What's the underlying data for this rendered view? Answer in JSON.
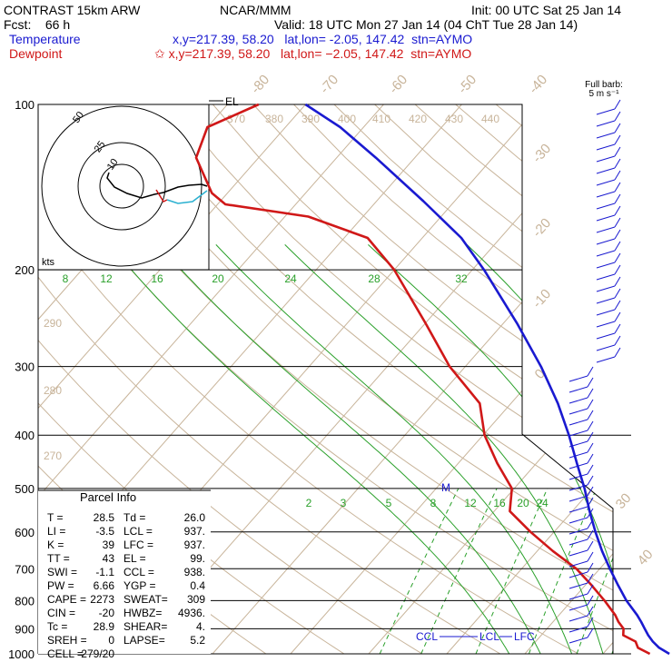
{
  "header": {
    "model": "CONTRAST 15km ARW",
    "center": "NCAR/MMM",
    "init": "Init: 00 UTC Sat 25 Jan 14",
    "fcst": "Fcst:    66 h",
    "valid": "Valid: 18 UTC Mon 27 Jan 14 (04 ChT Tue 28 Jan 14)",
    "temperature_label": "Temperature",
    "temperature_info": "x,y=217.39, 58.20   lat,lon= -2.05, 147.42  stn=AYMO",
    "dewpoint_label": "Dewpoint",
    "dewpoint_info": "✩ x,y=217.39, 58.20   lat,lon= −2.05, 147.42  stn=AYMO"
  },
  "barb_label": {
    "line1": "Full barb:",
    "line2": "5 m s⁻¹"
  },
  "hodo_label": "kts",
  "hodo_rings": [
    "10",
    "25",
    "50"
  ],
  "parcel": {
    "title": "Parcel Info",
    "rows": [
      [
        "T  =",
        "28.5",
        "Td =",
        "26.0"
      ],
      [
        "LI =",
        "-3.5",
        "LCL =",
        "937."
      ],
      [
        "K  =",
        "39",
        "LFC =",
        "937."
      ],
      [
        "TT =",
        "43",
        "EL =",
        "99."
      ],
      [
        "SWI =",
        "-1.1",
        "CCL =",
        "938."
      ],
      [
        "PW =",
        "6.66",
        "YGP =",
        "0.4"
      ],
      [
        "CAPE =",
        "2273",
        "SWEAT=",
        "309"
      ],
      [
        "CIN =",
        "-20",
        "HWBZ=",
        "4936."
      ],
      [
        "Tc =",
        "28.9",
        "SHEAR=",
        "4."
      ],
      [
        "SREH =",
        "0",
        "LAPSE=",
        "5.2"
      ],
      [
        "CELL =",
        "279/20",
        "",
        ""
      ]
    ]
  },
  "level_labels": {
    "el": "EL",
    "ccl": "CCL",
    "lcl": "LCL",
    "lfc": "LFC",
    "m": "M"
  },
  "colors": {
    "temperature": "#1a1ad0",
    "dewpoint": "#d01818",
    "isotherm": "#c8b49a",
    "moist_adiabat": "#2aa02a",
    "mixing_ratio": "#2aa02a",
    "isobar": "#000000"
  },
  "chart_data": {
    "type": "line",
    "title": "",
    "y_axis": {
      "label": "",
      "scale": "log",
      "ticks": [
        100,
        200,
        300,
        400,
        500,
        600,
        700,
        800,
        900,
        1000
      ],
      "range": [
        100,
        1000
      ]
    },
    "isotherm_labels": [
      "-80",
      "-70",
      "-60",
      "-50",
      "-40",
      "-30",
      "-20",
      "-10",
      "0",
      "30",
      "40"
    ],
    "theta_labels": [
      "370",
      "380",
      "390",
      "400",
      "410",
      "420",
      "430",
      "440",
      "290",
      "280",
      "270"
    ],
    "moist_adiabat_labels": [
      "8",
      "12",
      "16",
      "20",
      "24",
      "28",
      "32"
    ],
    "mixing_ratio_labels": [
      "2",
      "3",
      "5",
      "8",
      "12",
      "16",
      "20",
      "24"
    ],
    "series": [
      {
        "name": "Temperature",
        "points": [
          [
            1000,
            28.5
          ],
          [
            975,
            26.5
          ],
          [
            950,
            25.0
          ],
          [
            925,
            23.7
          ],
          [
            900,
            22.5
          ],
          [
            875,
            21.3
          ],
          [
            850,
            20.0
          ],
          [
            800,
            17.0
          ],
          [
            750,
            14.2
          ],
          [
            700,
            11.3
          ],
          [
            650,
            8.3
          ],
          [
            600,
            5.3
          ],
          [
            550,
            2.2
          ],
          [
            500,
            -1.0
          ],
          [
            450,
            -4.8
          ],
          [
            400,
            -9.0
          ],
          [
            350,
            -14.0
          ],
          [
            300,
            -20.3
          ],
          [
            250,
            -28.3
          ],
          [
            200,
            -38.5
          ],
          [
            175,
            -45.0
          ],
          [
            150,
            -54.0
          ],
          [
            125,
            -65.0
          ],
          [
            110,
            -73.0
          ],
          [
            100,
            -80.0
          ]
        ]
      },
      {
        "name": "Dewpoint",
        "points": [
          [
            1000,
            26.0
          ],
          [
            975,
            23.8
          ],
          [
            950,
            22.8
          ],
          [
            925,
            20.5
          ],
          [
            900,
            19.8
          ],
          [
            875,
            18.4
          ],
          [
            850,
            17.2
          ],
          [
            800,
            14.2
          ],
          [
            750,
            10.8
          ],
          [
            700,
            7.0
          ],
          [
            650,
            2.0
          ],
          [
            600,
            -3.0
          ],
          [
            550,
            -8.0
          ],
          [
            500,
            -10.3
          ],
          [
            450,
            -15.0
          ],
          [
            400,
            -19.8
          ],
          [
            350,
            -24.0
          ],
          [
            300,
            -32.0
          ],
          [
            250,
            -40.0
          ],
          [
            200,
            -50.0
          ],
          [
            175,
            -57.0
          ],
          [
            160,
            -67.0
          ],
          [
            152,
            -79.0
          ],
          [
            145,
            -82.0
          ],
          [
            125,
            -88.0
          ],
          [
            110,
            -90.0
          ],
          [
            100,
            -86.0
          ]
        ]
      }
    ]
  }
}
